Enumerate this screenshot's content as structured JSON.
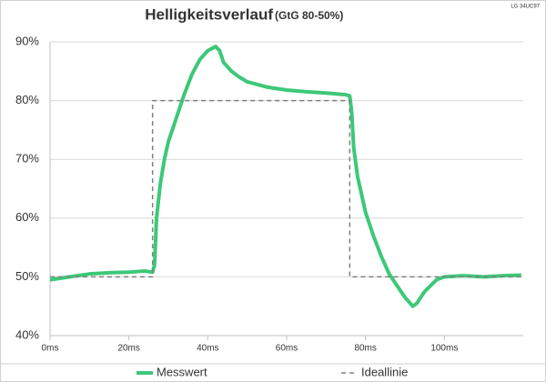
{
  "chart_data": {
    "type": "line",
    "title": "Helligkeitsverlauf",
    "subtitle": "(GtG 80-50%)",
    "annotation": "LG 34UC97",
    "xlim": [
      0,
      120
    ],
    "ylim": [
      40,
      90
    ],
    "xticks": [
      {
        "value": 0,
        "label": "0ms"
      },
      {
        "value": 20,
        "label": "20ms"
      },
      {
        "value": 40,
        "label": "40ms"
      },
      {
        "value": 60,
        "label": "60ms"
      },
      {
        "value": 80,
        "label": "80ms"
      },
      {
        "value": 100,
        "label": "100ms"
      }
    ],
    "yticks": [
      {
        "value": 40,
        "label": "40%"
      },
      {
        "value": 50,
        "label": "50%"
      },
      {
        "value": 60,
        "label": "60%"
      },
      {
        "value": 70,
        "label": "70%"
      },
      {
        "value": 80,
        "label": "80%"
      },
      {
        "value": 90,
        "label": "90%"
      }
    ],
    "grid": true,
    "legend": "bottom",
    "series": [
      {
        "name": "Messwert",
        "color": "#3cc878",
        "dash": false,
        "x": [
          0,
          5,
          10,
          15,
          20,
          24,
          26,
          26.5,
          27,
          28,
          29,
          30,
          32,
          34,
          36,
          38,
          40,
          42,
          43,
          44,
          46,
          48,
          50,
          55,
          60,
          65,
          70,
          75,
          76,
          76.5,
          77,
          78,
          80,
          82,
          84,
          86,
          88,
          90,
          92,
          93,
          95,
          98,
          100,
          105,
          110,
          115,
          119.5
        ],
        "values": [
          49.5,
          50,
          50.5,
          50.7,
          50.8,
          51,
          50.8,
          52,
          60,
          66,
          70,
          73,
          77,
          81,
          84.5,
          87,
          88.5,
          89.2,
          88.5,
          86.5,
          85,
          84,
          83.2,
          82.3,
          81.8,
          81.5,
          81.3,
          81,
          80.8,
          78,
          72,
          67,
          61,
          57,
          53.5,
          50.5,
          48.5,
          46.5,
          45,
          45.5,
          47.5,
          49.5,
          50,
          50.2,
          50,
          50.2,
          50.3
        ]
      },
      {
        "name": "Ideallinie",
        "color": "#808080",
        "dash": true,
        "x": [
          0,
          26,
          26,
          76,
          76,
          120
        ],
        "values": [
          50,
          50,
          80,
          80,
          50,
          50
        ]
      }
    ]
  }
}
